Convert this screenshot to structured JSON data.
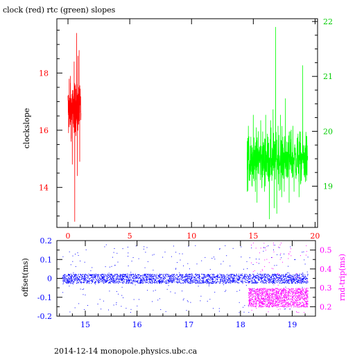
{
  "footer": "2014-12-14 monopole.physics.ubc.ca",
  "colors": {
    "clock": "#ff0000",
    "rtc": "#00ff00",
    "offset": "#0000ff",
    "rtt": "#ff00ff",
    "axis": "#000000"
  },
  "chart_data": [
    {
      "type": "line",
      "title": "clock (red) rtc (green) slopes",
      "ylabel": "clockslope",
      "xlim": [
        -0.9,
        20.2
      ],
      "ylim_left": [
        12.6,
        19.9
      ],
      "ylim_right": [
        18.25,
        22.05
      ],
      "xticks": [
        0,
        5,
        10,
        15,
        20
      ],
      "yticks_left": [
        14,
        16,
        18
      ],
      "yticks_right": [
        19,
        20,
        21,
        22
      ],
      "series": [
        {
          "axis": "left",
          "color": "#ff0000",
          "x_range": [
            0.0,
            1.05
          ],
          "y_band": [
            15.9,
            17.6
          ],
          "y_min": 12.8,
          "y_max": 19.4,
          "points": [
            [
              0.0,
              17.2
            ],
            [
              0.05,
              15.9
            ],
            [
              0.1,
              17.8
            ],
            [
              0.15,
              16.4
            ],
            [
              0.2,
              17.9
            ],
            [
              0.25,
              15.6
            ],
            [
              0.3,
              16.8
            ],
            [
              0.35,
              14.8
            ],
            [
              0.4,
              17.4
            ],
            [
              0.45,
              16.1
            ],
            [
              0.5,
              18.4
            ],
            [
              0.55,
              12.8
            ],
            [
              0.6,
              17.6
            ],
            [
              0.65,
              15.8
            ],
            [
              0.7,
              19.4
            ],
            [
              0.75,
              14.4
            ],
            [
              0.8,
              18.6
            ],
            [
              0.85,
              16.2
            ],
            [
              0.9,
              18.8
            ],
            [
              0.95,
              14.9
            ],
            [
              1.0,
              17.1
            ],
            [
              1.05,
              16.6
            ]
          ]
        },
        {
          "axis": "right",
          "color": "#00ff00",
          "x_range": [
            14.5,
            19.4
          ],
          "y_band": [
            19.0,
            20.0
          ],
          "y_min": 18.3,
          "y_max": 21.9,
          "points": [
            [
              14.5,
              18.9
            ],
            [
              14.6,
              20.1
            ],
            [
              14.7,
              19.4
            ],
            [
              14.8,
              19.9
            ],
            [
              14.9,
              19.1
            ],
            [
              15.0,
              20.3
            ],
            [
              15.1,
              19.3
            ],
            [
              15.2,
              19.8
            ],
            [
              15.3,
              18.7
            ],
            [
              15.4,
              20.0
            ],
            [
              15.5,
              19.5
            ],
            [
              15.6,
              20.2
            ],
            [
              15.7,
              19.0
            ],
            [
              15.8,
              19.8
            ],
            [
              15.9,
              18.9
            ],
            [
              16.0,
              20.3
            ],
            [
              16.1,
              19.2
            ],
            [
              16.2,
              19.9
            ],
            [
              16.3,
              18.4
            ],
            [
              16.4,
              20.2
            ],
            [
              16.5,
              19.1
            ],
            [
              16.6,
              20.4
            ],
            [
              16.7,
              18.6
            ],
            [
              16.8,
              21.9
            ],
            [
              16.9,
              18.5
            ],
            [
              17.0,
              20.1
            ],
            [
              17.1,
              19.2
            ],
            [
              17.2,
              20.3
            ],
            [
              17.3,
              18.8
            ],
            [
              17.4,
              19.9
            ],
            [
              17.5,
              18.9
            ],
            [
              17.6,
              20.6
            ],
            [
              17.7,
              19.3
            ],
            [
              17.8,
              19.8
            ],
            [
              17.9,
              18.7
            ],
            [
              18.0,
              20.0
            ],
            [
              18.1,
              19.4
            ],
            [
              18.2,
              20.1
            ],
            [
              18.3,
              18.9
            ],
            [
              18.4,
              19.7
            ],
            [
              18.5,
              19.2
            ],
            [
              18.6,
              19.9
            ],
            [
              18.7,
              18.8
            ],
            [
              18.8,
              19.8
            ],
            [
              18.9,
              19.1
            ],
            [
              19.0,
              21.2
            ],
            [
              19.1,
              19.2
            ],
            [
              19.2,
              19.7
            ],
            [
              19.3,
              19.1
            ],
            [
              19.4,
              19.5
            ]
          ]
        }
      ]
    },
    {
      "type": "scatter",
      "ylabel_left": "offset(ms)",
      "ylabel_right": "rnd-trip(ms)",
      "xlim": [
        14.45,
        19.45
      ],
      "ylim_left": [
        -0.2,
        0.2
      ],
      "ylim_right": [
        0.15,
        0.55
      ],
      "xticks": [
        15,
        16,
        17,
        18,
        19
      ],
      "yticks_left": [
        -0.2,
        -0.1,
        0,
        0.1,
        0.2
      ],
      "yticks_left_labels": [
        "-0.2",
        "-0.1",
        "0",
        "0.1",
        "0.2"
      ],
      "yticks_right": [
        0.2,
        0.3,
        0.4,
        0.5
      ],
      "yticks_right_labels": [
        "0.2",
        "0.3",
        "0.4",
        "0.5"
      ],
      "series": [
        {
          "name": "offset",
          "axis": "left",
          "color": "#0000ff",
          "x_range": [
            14.55,
            19.3
          ],
          "y_band": [
            -0.025,
            0.025
          ],
          "y_scatter": [
            -0.18,
            0.18
          ]
        },
        {
          "name": "rnd-trip",
          "axis": "right",
          "color": "#ff00ff",
          "x_range": [
            18.15,
            19.3
          ],
          "y_band": [
            0.2,
            0.3
          ],
          "y_scatter": [
            0.17,
            0.55
          ]
        }
      ]
    }
  ]
}
